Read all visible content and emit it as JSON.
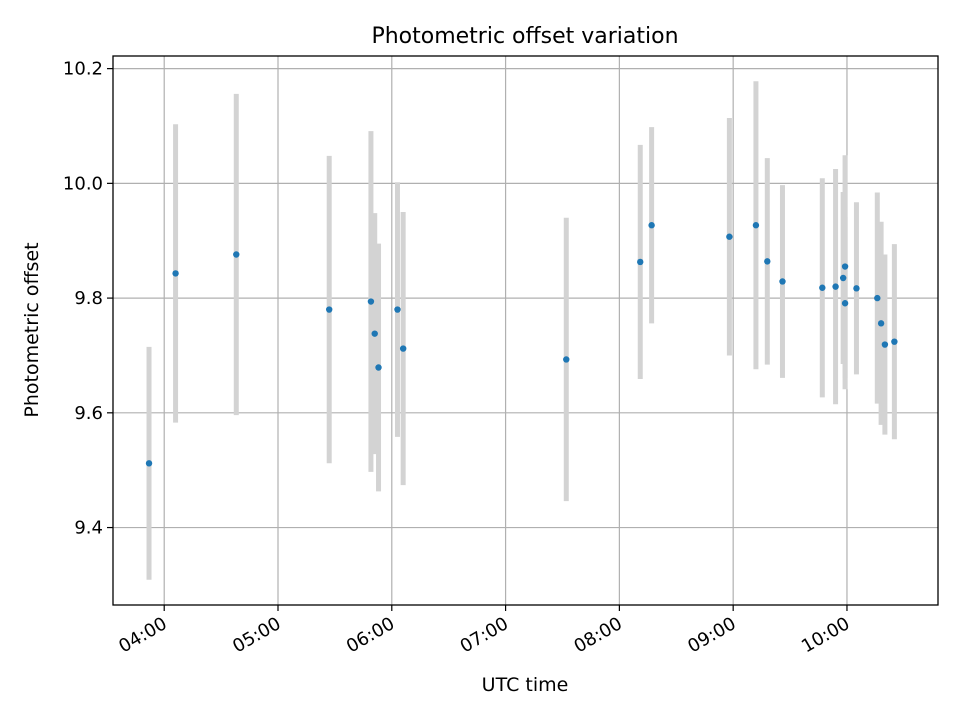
{
  "chart_data": {
    "type": "scatter",
    "title": "Photometric offset variation",
    "xlabel": "UTC time",
    "ylabel": "Photometric offset",
    "x_ticks": [
      "04:00",
      "05:00",
      "06:00",
      "07:00",
      "08:00",
      "09:00",
      "10:00"
    ],
    "y_ticks": [
      "9.4",
      "9.6",
      "9.8",
      "10.0",
      "10.2"
    ],
    "xlim": [
      "03:33",
      "10:48"
    ],
    "ylim": [
      9.265,
      10.222
    ],
    "grid": true,
    "colors": {
      "point": "#1f77b4",
      "errorbar": "#d3d3d3",
      "grid": "#b0b0b0"
    },
    "points": [
      {
        "t": "03:52",
        "y": 9.512,
        "err": 0.203
      },
      {
        "t": "04:06",
        "y": 9.843,
        "err": 0.26
      },
      {
        "t": "04:38",
        "y": 9.876,
        "err": 0.28
      },
      {
        "t": "05:27",
        "y": 9.78,
        "err": 0.268
      },
      {
        "t": "05:49",
        "y": 9.794,
        "err": 0.297
      },
      {
        "t": "05:51",
        "y": 9.738,
        "err": 0.21
      },
      {
        "t": "05:53",
        "y": 9.679,
        "err": 0.216
      },
      {
        "t": "06:03",
        "y": 9.78,
        "err": 0.222
      },
      {
        "t": "06:06",
        "y": 9.712,
        "err": 0.238
      },
      {
        "t": "07:32",
        "y": 9.693,
        "err": 0.247
      },
      {
        "t": "08:11",
        "y": 9.863,
        "err": 0.204
      },
      {
        "t": "08:17",
        "y": 9.927,
        "err": 0.171
      },
      {
        "t": "08:58",
        "y": 9.907,
        "err": 0.207
      },
      {
        "t": "09:12",
        "y": 9.927,
        "err": 0.251
      },
      {
        "t": "09:18",
        "y": 9.864,
        "err": 0.18
      },
      {
        "t": "09:26",
        "y": 9.829,
        "err": 0.168
      },
      {
        "t": "09:47",
        "y": 9.818,
        "err": 0.191
      },
      {
        "t": "09:54",
        "y": 9.82,
        "err": 0.205
      },
      {
        "t": "09:58",
        "y": 9.835,
        "err": 0.15
      },
      {
        "t": "09:59",
        "y": 9.855,
        "err": 0.194
      },
      {
        "t": "09:59",
        "y": 9.791,
        "err": 0.15
      },
      {
        "t": "10:05",
        "y": 9.817,
        "err": 0.15
      },
      {
        "t": "10:16",
        "y": 9.8,
        "err": 0.184
      },
      {
        "t": "10:18",
        "y": 9.756,
        "err": 0.177
      },
      {
        "t": "10:20",
        "y": 9.719,
        "err": 0.157
      },
      {
        "t": "10:25",
        "y": 9.724,
        "err": 0.17
      }
    ]
  }
}
